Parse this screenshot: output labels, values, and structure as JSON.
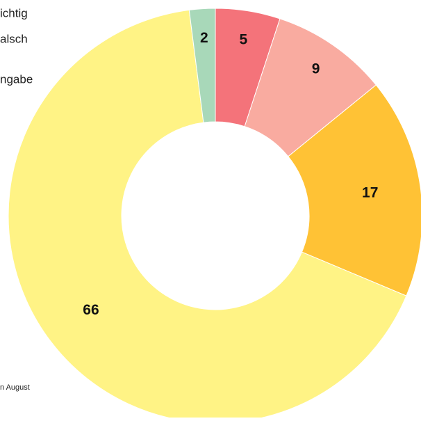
{
  "chart_data": {
    "type": "donut",
    "categories": [
      null,
      null,
      null,
      null,
      null
    ],
    "values": [
      5,
      9,
      17,
      66,
      2
    ],
    "colors": [
      "#f4737a",
      "#f9aba0",
      "#ffc235",
      "#fff385",
      "#a8d8b9"
    ],
    "legend": [
      "ichtig",
      "alsch",
      "ngabe"
    ],
    "note": "n August"
  }
}
